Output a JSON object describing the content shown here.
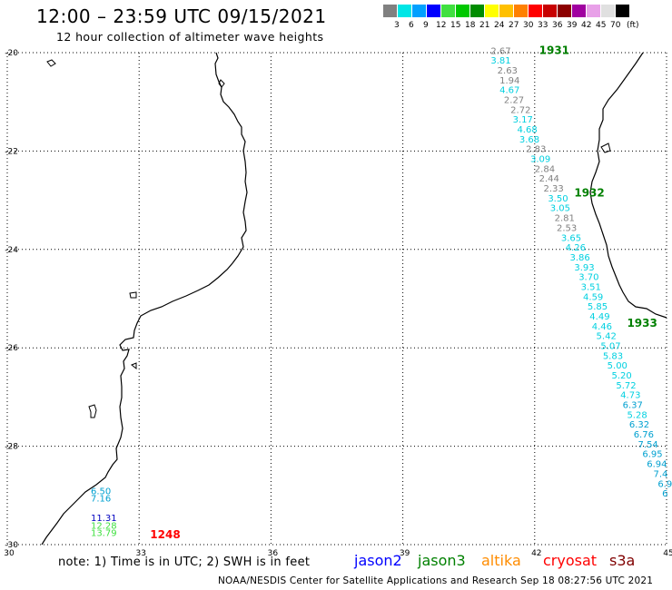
{
  "header": {
    "title": "12:00 – 23:59 UTC 09/15/2021",
    "subtitle": "12 hour collection of altimeter wave heights"
  },
  "legend": {
    "unit": "(ft)",
    "swatches": [
      {
        "color": "#808080",
        "label": "3"
      },
      {
        "color": "#00e6e6",
        "label": "6"
      },
      {
        "color": "#00a0ff",
        "label": "9"
      },
      {
        "color": "#0000ff",
        "label": "12"
      },
      {
        "color": "#40e040",
        "label": "15"
      },
      {
        "color": "#00c800",
        "label": "18"
      },
      {
        "color": "#008c00",
        "label": "21"
      },
      {
        "color": "#ffff00",
        "label": "24"
      },
      {
        "color": "#ffc000",
        "label": "27"
      },
      {
        "color": "#ff8000",
        "label": "30"
      },
      {
        "color": "#ff0000",
        "label": "33"
      },
      {
        "color": "#c80000",
        "label": "36"
      },
      {
        "color": "#8c0000",
        "label": "39"
      },
      {
        "color": "#a000a0",
        "label": "42"
      },
      {
        "color": "#e8a0e8",
        "label": "45"
      },
      {
        "color": "#e0e0e0",
        "label": "70"
      },
      {
        "color": "#000000",
        "label": ""
      }
    ]
  },
  "map": {
    "lon_range": [
      30,
      45
    ],
    "lat_range": [
      -30,
      -20
    ],
    "lon_labels": [
      "30",
      "33",
      "36",
      "39",
      "42",
      "45"
    ],
    "lat_labels": [
      "-20",
      "-22",
      "-24",
      "-26",
      "-28",
      "-30"
    ],
    "grid": "dotted",
    "track_times": [
      {
        "text": "1931",
        "lon": 42.1,
        "lat": -19.95,
        "color": "#008000"
      },
      {
        "text": "1932",
        "lon": 42.9,
        "lat": -22.85,
        "color": "#008000"
      },
      {
        "text": "1933",
        "lon": 44.1,
        "lat": -25.5,
        "color": "#008000"
      },
      {
        "text": "1248",
        "lon": 33.25,
        "lat": -29.8,
        "color": "#ff0000"
      }
    ],
    "readings": [
      {
        "text": "2.67",
        "lon": 41.0,
        "lat": -19.95,
        "color": "#808080"
      },
      {
        "text": "3.81",
        "lon": 41.0,
        "lat": -20.15,
        "color": "#00d0e0"
      },
      {
        "text": "2.63",
        "lon": 41.15,
        "lat": -20.35,
        "color": "#808080"
      },
      {
        "text": "1.94",
        "lon": 41.2,
        "lat": -20.55,
        "color": "#808080"
      },
      {
        "text": "4.67",
        "lon": 41.2,
        "lat": -20.75,
        "color": "#00d0e0"
      },
      {
        "text": "2.27",
        "lon": 41.3,
        "lat": -20.95,
        "color": "#808080"
      },
      {
        "text": "2.72",
        "lon": 41.45,
        "lat": -21.15,
        "color": "#808080"
      },
      {
        "text": "3.17",
        "lon": 41.5,
        "lat": -21.35,
        "color": "#00d0e0"
      },
      {
        "text": "4.68",
        "lon": 41.6,
        "lat": -21.55,
        "color": "#00d0e0"
      },
      {
        "text": "3.68",
        "lon": 41.65,
        "lat": -21.75,
        "color": "#00d0e0"
      },
      {
        "text": "2.83",
        "lon": 41.8,
        "lat": -21.95,
        "color": "#808080"
      },
      {
        "text": "3.09",
        "lon": 41.9,
        "lat": -22.15,
        "color": "#00d0e0"
      },
      {
        "text": "2.84",
        "lon": 42.0,
        "lat": -22.35,
        "color": "#808080"
      },
      {
        "text": "2.44",
        "lon": 42.1,
        "lat": -22.55,
        "color": "#808080"
      },
      {
        "text": "2.33",
        "lon": 42.2,
        "lat": -22.75,
        "color": "#808080"
      },
      {
        "text": "3.50",
        "lon": 42.3,
        "lat": -22.95,
        "color": "#00d0e0"
      },
      {
        "text": "3.05",
        "lon": 42.35,
        "lat": -23.15,
        "color": "#00d0e0"
      },
      {
        "text": "2.81",
        "lon": 42.45,
        "lat": -23.35,
        "color": "#808080"
      },
      {
        "text": "2.53",
        "lon": 42.5,
        "lat": -23.55,
        "color": "#808080"
      },
      {
        "text": "3.65",
        "lon": 42.6,
        "lat": -23.75,
        "color": "#00d0e0"
      },
      {
        "text": "4.26",
        "lon": 42.7,
        "lat": -23.95,
        "color": "#00d0e0"
      },
      {
        "text": "3.86",
        "lon": 42.8,
        "lat": -24.15,
        "color": "#00d0e0"
      },
      {
        "text": "3.93",
        "lon": 42.9,
        "lat": -24.35,
        "color": "#00d0e0"
      },
      {
        "text": "3.70",
        "lon": 43.0,
        "lat": -24.55,
        "color": "#00d0e0"
      },
      {
        "text": "3.51",
        "lon": 43.05,
        "lat": -24.75,
        "color": "#00d0e0"
      },
      {
        "text": "4.59",
        "lon": 43.1,
        "lat": -24.95,
        "color": "#00d0e0"
      },
      {
        "text": "5.85",
        "lon": 43.2,
        "lat": -25.15,
        "color": "#00d0e0"
      },
      {
        "text": "4.49",
        "lon": 43.25,
        "lat": -25.35,
        "color": "#00d0e0"
      },
      {
        "text": "4.46",
        "lon": 43.3,
        "lat": -25.55,
        "color": "#00d0e0"
      },
      {
        "text": "5.42",
        "lon": 43.4,
        "lat": -25.75,
        "color": "#00d0e0"
      },
      {
        "text": "5.07",
        "lon": 43.5,
        "lat": -25.95,
        "color": "#00d0e0"
      },
      {
        "text": "5.83",
        "lon": 43.55,
        "lat": -26.15,
        "color": "#00d0e0"
      },
      {
        "text": "5.00",
        "lon": 43.65,
        "lat": -26.35,
        "color": "#00d0e0"
      },
      {
        "text": "5.20",
        "lon": 43.75,
        "lat": -26.55,
        "color": "#00d0e0"
      },
      {
        "text": "5.72",
        "lon": 43.85,
        "lat": -26.75,
        "color": "#00d0e0"
      },
      {
        "text": "4.73",
        "lon": 43.95,
        "lat": -26.95,
        "color": "#00d0e0"
      },
      {
        "text": "6.37",
        "lon": 44.0,
        "lat": -27.15,
        "color": "#00a0d0"
      },
      {
        "text": "5.28",
        "lon": 44.1,
        "lat": -27.35,
        "color": "#00d0e0"
      },
      {
        "text": "6.32",
        "lon": 44.15,
        "lat": -27.55,
        "color": "#00a0d0"
      },
      {
        "text": "6.76",
        "lon": 44.25,
        "lat": -27.75,
        "color": "#00a0d0"
      },
      {
        "text": "7.54",
        "lon": 44.35,
        "lat": -27.95,
        "color": "#00a0d0"
      },
      {
        "text": "6.95",
        "lon": 44.45,
        "lat": -28.15,
        "color": "#00a0d0"
      },
      {
        "text": "6.94",
        "lon": 44.55,
        "lat": -28.35,
        "color": "#00a0d0"
      },
      {
        "text": "7.4",
        "lon": 44.7,
        "lat": -28.55,
        "color": "#00a0d0"
      },
      {
        "text": "6.9",
        "lon": 44.8,
        "lat": -28.75,
        "color": "#00a0d0"
      },
      {
        "text": "6",
        "lon": 44.9,
        "lat": -28.95,
        "color": "#00a0d0"
      },
      {
        "text": "6.50",
        "lon": 31.9,
        "lat": -28.9,
        "color": "#00a0d0"
      },
      {
        "text": "7.16",
        "lon": 31.9,
        "lat": -29.05,
        "color": "#00a0d0"
      },
      {
        "text": "11.31",
        "lon": 31.9,
        "lat": -29.45,
        "color": "#0000c0"
      },
      {
        "text": "12.28",
        "lon": 31.9,
        "lat": -29.6,
        "color": "#40e040"
      },
      {
        "text": "13.79",
        "lon": 31.9,
        "lat": -29.75,
        "color": "#40e040"
      }
    ]
  },
  "footer": {
    "note": "note: 1) Time is in UTC; 2) SWH is in feet",
    "satellites": [
      {
        "name": "jason2",
        "color": "#0000ff"
      },
      {
        "name": "jason3",
        "color": "#008000"
      },
      {
        "name": "altika",
        "color": "#ff8c00"
      },
      {
        "name": "cryosat",
        "color": "#ff0000"
      },
      {
        "name": "s3a",
        "color": "#800000"
      }
    ],
    "credit": "NOAA/NESDIS Center for Satellite Applications and Research    Sep 18 08:27:56 UTC 2021"
  }
}
